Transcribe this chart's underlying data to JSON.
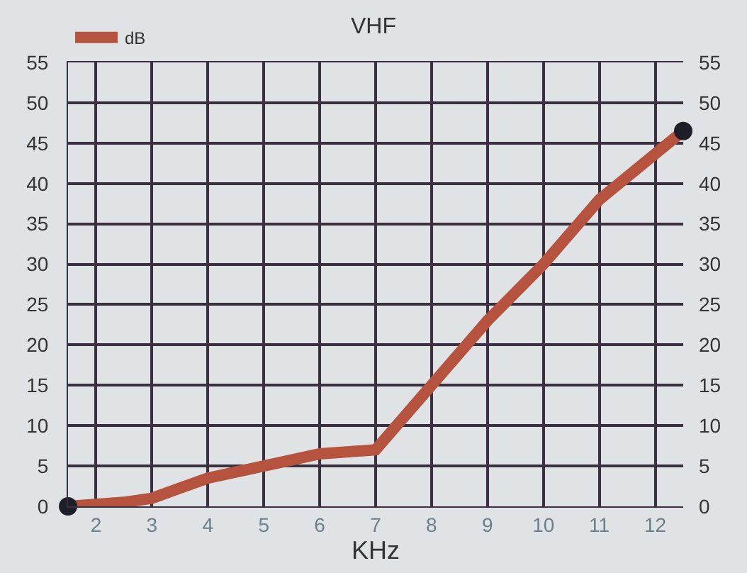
{
  "chart_data": {
    "type": "line",
    "title": "VHF",
    "xlabel": "KHz",
    "series": [
      {
        "name": "dB",
        "color": "#b5533f",
        "x": [
          1.5,
          2.5,
          3,
          4,
          5,
          6,
          7,
          8,
          9,
          10,
          11,
          12.5
        ],
        "values": [
          0,
          0.5,
          1,
          3.5,
          5,
          6.5,
          7,
          15,
          23,
          30,
          38,
          46.5
        ]
      },
      {
        "type": "scatter",
        "marker": "circle",
        "color": "#1e1e28",
        "x": [
          1.5,
          12.5
        ],
        "values": [
          0,
          46.5
        ]
      }
    ],
    "xlim": [
      1.5,
      12.5
    ],
    "xticks": [
      2,
      3,
      4,
      5,
      6,
      7,
      8,
      9,
      10,
      11,
      12
    ],
    "ylim": [
      0,
      55
    ],
    "yticks": [
      0,
      5,
      10,
      15,
      20,
      25,
      30,
      35,
      40,
      45,
      50,
      55
    ],
    "y2lim": [
      0,
      55
    ],
    "y2ticks": [
      0,
      5,
      10,
      15,
      20,
      25,
      30,
      35,
      40,
      45,
      50,
      55
    ],
    "grid": true,
    "legend": "top left",
    "line_style": "solid"
  }
}
